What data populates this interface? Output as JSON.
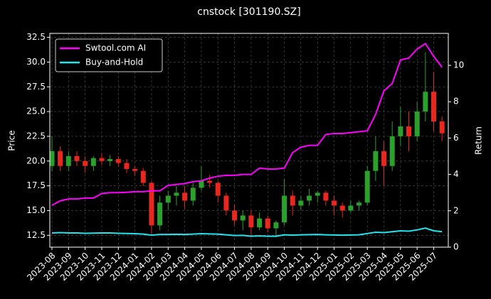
{
  "chart_data": {
    "type": "candlestick",
    "title": "cnstock [301190.SZ]",
    "ylabel": "Price",
    "y2label": "Return",
    "categories": [
      "2023-08",
      null,
      "2023-09",
      null,
      "2023-10",
      null,
      "2023-11",
      null,
      "2023-12",
      null,
      "2024-01",
      null,
      "2024-02",
      null,
      "2024-03",
      null,
      "2024-04",
      null,
      "2024-05",
      null,
      "2024-06",
      null,
      "2024-07",
      null,
      "2024-08",
      null,
      "2024-09",
      null,
      "2024-10",
      null,
      "2024-11",
      null,
      "2024-12",
      null,
      "2025-01",
      null,
      "2025-02",
      null,
      "2025-03",
      null,
      "2025-04",
      null,
      "2025-05",
      null,
      "2025-06",
      null,
      "2025-07",
      null
    ],
    "open": [
      19.5,
      21,
      19.5,
      20.5,
      20,
      19.5,
      20.3,
      20,
      20.2,
      19.8,
      19.2,
      19,
      17.8,
      13.5,
      15.8,
      16.5,
      16.8,
      16,
      17.3,
      18,
      17.8,
      16.5,
      15,
      14,
      14.5,
      13.3,
      14.2,
      13.2,
      13.8,
      16.5,
      15.5,
      16,
      16.5,
      16.8,
      16,
      15.5,
      15,
      15.5,
      15.8,
      19,
      21,
      19.5,
      22.5,
      23.5,
      22.5,
      25,
      27,
      24
    ],
    "high": [
      22.5,
      21.5,
      21,
      21,
      20.5,
      20.5,
      20.8,
      20.6,
      20.5,
      20.2,
      19.5,
      19.3,
      18,
      16.5,
      17,
      17.5,
      17.5,
      17.8,
      19.5,
      18.6,
      18,
      16.8,
      15.6,
      15,
      15,
      14.8,
      14.5,
      14,
      18.2,
      17,
      16.5,
      17.2,
      17,
      17,
      16.5,
      15.8,
      16,
      16,
      19.5,
      22.5,
      22,
      24,
      25.5,
      25,
      26,
      31,
      29,
      24.5
    ],
    "low": [
      19,
      19,
      19,
      19.5,
      18.8,
      19,
      19.6,
      19.5,
      19.5,
      18.8,
      18.5,
      17.5,
      12.5,
      13,
      15,
      15.5,
      15.2,
      15.5,
      17,
      17.3,
      15.8,
      14.5,
      13.5,
      13,
      12.4,
      13,
      12.8,
      12.3,
      13.5,
      14.5,
      15,
      15.5,
      15.8,
      15.5,
      14.5,
      14.3,
      14.8,
      15,
      15.5,
      18,
      17.5,
      19,
      21.5,
      21,
      22,
      24,
      23,
      22
    ],
    "close": [
      21,
      19.5,
      20.5,
      20,
      19.5,
      20.3,
      20,
      20.2,
      19.8,
      19.2,
      19,
      17.8,
      13.5,
      15.8,
      16.5,
      16.8,
      16,
      17.3,
      18,
      17.8,
      16.5,
      15,
      14,
      14.5,
      13.3,
      14.2,
      13.2,
      13.8,
      16.5,
      15.5,
      16,
      16.5,
      16.8,
      16,
      15.5,
      15,
      15.5,
      15.8,
      19,
      21,
      19.5,
      22.5,
      23.5,
      22.5,
      25,
      27,
      24,
      22.8
    ],
    "up_color": "#2ca02c",
    "down_color": "#e8281e",
    "series": [
      {
        "name": "Swtool.com AI",
        "color": "#ff00ff",
        "axis": "y2",
        "values": [
          2.3,
          2.55,
          2.65,
          2.65,
          2.7,
          2.7,
          2.95,
          3.0,
          3.0,
          3.02,
          3.05,
          3.05,
          3.1,
          3.1,
          3.4,
          3.45,
          3.5,
          3.6,
          3.65,
          3.8,
          3.9,
          3.95,
          3.95,
          4.0,
          4.0,
          4.35,
          4.3,
          4.3,
          4.35,
          5.2,
          5.5,
          5.6,
          5.6,
          6.2,
          6.25,
          6.25,
          6.3,
          6.35,
          6.4,
          7.3,
          8.6,
          9.0,
          10.3,
          10.4,
          10.9,
          11.2,
          10.5,
          9.9
        ]
      },
      {
        "name": "Buy-and-Hold",
        "color": "#22e5f0",
        "axis": "y2",
        "values": [
          0.78,
          0.8,
          0.78,
          0.78,
          0.76,
          0.77,
          0.78,
          0.78,
          0.76,
          0.75,
          0.74,
          0.72,
          0.66,
          0.7,
          0.7,
          0.71,
          0.7,
          0.72,
          0.74,
          0.73,
          0.72,
          0.68,
          0.64,
          0.65,
          0.6,
          0.62,
          0.6,
          0.6,
          0.68,
          0.66,
          0.68,
          0.69,
          0.7,
          0.68,
          0.67,
          0.66,
          0.67,
          0.68,
          0.75,
          0.82,
          0.8,
          0.85,
          0.9,
          0.88,
          0.95,
          1.05,
          0.9,
          0.85
        ]
      }
    ],
    "ylim": [
      11.3,
      32.9
    ],
    "yticks": [
      12.5,
      {
        "value": 15,
        "label": "15.0"
      },
      17.5,
      {
        "value": 20,
        "label": "20.0"
      },
      22.5,
      {
        "value": 25,
        "label": "25.0"
      },
      27.5,
      {
        "value": 30,
        "label": "30.0"
      },
      32.5
    ],
    "y2lim": [
      0,
      11.76
    ],
    "y2ticks": [
      0,
      2,
      4,
      6,
      8,
      10
    ],
    "grid": true,
    "legend": "upper-left"
  }
}
